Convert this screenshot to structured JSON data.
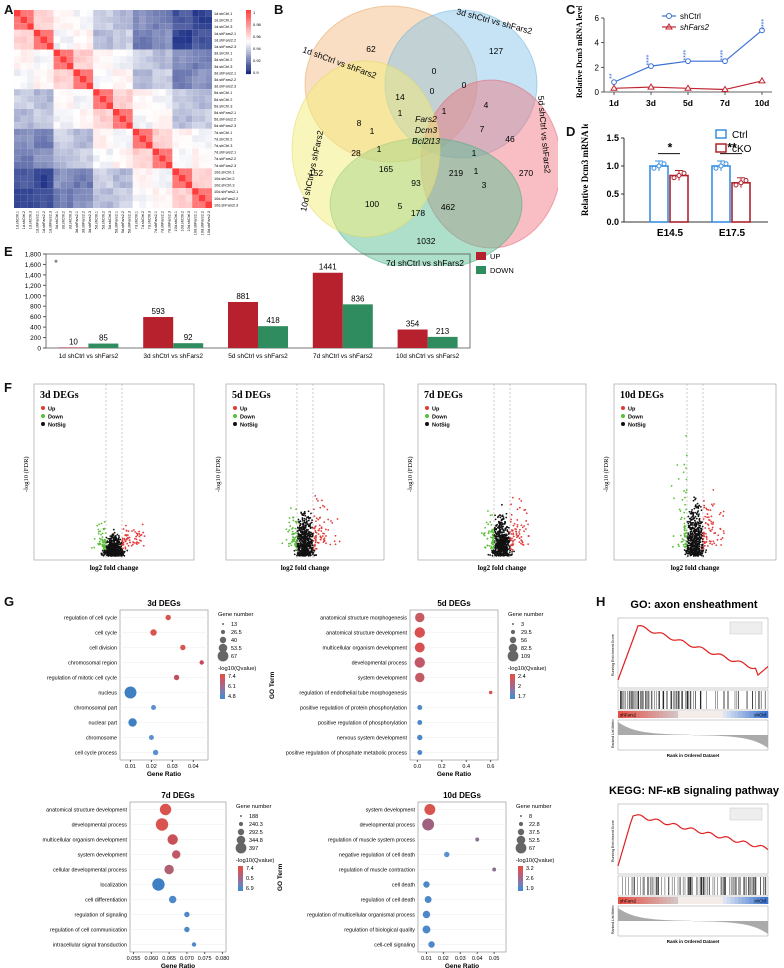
{
  "panel_labels": {
    "A": "A",
    "B": "B",
    "C": "C",
    "D": "D",
    "E": "E",
    "F": "F",
    "G": "G",
    "H": "H"
  },
  "heatmap": {
    "rows": [
      "1d.shCtrl.1",
      "1d.shCtrl.2",
      "1d.shCtrl.3",
      "1d.shFars2.1",
      "1d.shFars2.2",
      "1d.shFars2.3",
      "3d.shCtrl.1",
      "3d.shCtrl.2",
      "3d.shCtrl.3",
      "3d.shFars2.1",
      "3d.shFars2.2",
      "3d.shFars2.3",
      "5d.shCtrl.1",
      "5d.shCtrl.2",
      "5d.shCtrl.3",
      "5d.shFars2.1",
      "5d.shFars2.2",
      "5d.shFars2.3",
      "7d.shCtrl.1",
      "7d.shCtrl.2",
      "7d.shCtrl.3",
      "7d.shFars2.1",
      "7d.shFars2.2",
      "7d.shFars2.3",
      "10d.shCtrl.1",
      "10d.shCtrl.2",
      "10d.shCtrl.3",
      "10d.shFars2.1",
      "10d.shFars2.2",
      "10d.shFars2.3"
    ],
    "scale": [
      "1",
      "0.98",
      "0.96",
      "0.94",
      "0.92",
      "0.9"
    ]
  },
  "venn": {
    "sets": [
      "1d shCtrl vs shFars2",
      "3d shCtrl vs shFars2",
      "5d shCtrl vs shFars2",
      "7d shCtrl vs shFars2",
      "10d shCtrl vs shFars2"
    ],
    "core_genes": [
      "Fars2",
      "Dcm3",
      "Bcl2l13"
    ],
    "counts": [
      "62",
      "127",
      "270",
      "1032",
      "152",
      "14",
      "0",
      "1",
      "0",
      "4",
      "8",
      "7",
      "46",
      "1",
      "1",
      "28",
      "1",
      "165",
      "93",
      "219",
      "1",
      "3",
      "100",
      "5",
      "178",
      "462",
      "0",
      "1"
    ]
  },
  "panel_c": {
    "ylabel": "Relative Dcm3 mRNA levels",
    "legend": [
      "shCtrl",
      "shFars2"
    ],
    "x": [
      "1d",
      "3d",
      "5d",
      "7d",
      "10d"
    ],
    "yticks": [
      "0",
      "2",
      "4",
      "6"
    ],
    "sig": [
      "**",
      "****",
      "****",
      "****",
      "****"
    ]
  },
  "panel_d": {
    "ylabel": "Relative Dcm3 mRNA levels",
    "legend": [
      "Ctrl",
      "cKO"
    ],
    "x": [
      "E14.5",
      "E17.5"
    ],
    "yticks": [
      "0.0",
      "0.5",
      "1.0",
      "1.5"
    ],
    "sig": [
      "*",
      "**"
    ]
  },
  "panel_e": {
    "legend": [
      "UP",
      "DOWN"
    ],
    "yticks": [
      "0",
      "200",
      "400",
      "600",
      "800",
      "1,000",
      "1,200",
      "1,400",
      "1,600",
      "1,800"
    ]
  },
  "volcano": {
    "titles": [
      "3d DEGs",
      "5d DEGs",
      "7d DEGs",
      "10d DEGs"
    ],
    "legend": [
      "Up",
      "Down",
      "NotSig"
    ],
    "xlabel": "log2 fold change",
    "ylabel": "-log10 (FDR)"
  },
  "go": {
    "gene_number_title": "Gene number",
    "qvalue_title": "-log10(Qvalue)",
    "xlabel": "Gene Ratio",
    "ylabel": "GO Term",
    "panels": [
      {
        "title": "3d DEGs",
        "terms": [
          "regulation of cell cycle",
          "cell cycle",
          "cell division",
          "chromosomal region",
          "regulation of mitotic cell cycle",
          "nucleus",
          "chromosomal part",
          "nuclear part",
          "chromosome",
          "cell cycle process"
        ],
        "xticks": [
          "0.01",
          "0.02",
          "0.03",
          "0.04"
        ],
        "sizes": [
          "13",
          "26.5",
          "40",
          "53.5",
          "67"
        ],
        "colors": [
          "7.4",
          "6.1",
          "4.8"
        ]
      },
      {
        "title": "5d DEGs",
        "terms": [
          "anatomical structure morphogenesis",
          "anatomical structure development",
          "multicellular organism development",
          "developmental process",
          "system development",
          "regulation of endothelial tube morphogenesis",
          "positive regulation of protein phosphorylation",
          "positive regulation of phosphorylation",
          "nervous system development",
          "positive regulation of phosphate metabolic process"
        ],
        "xticks": [
          "0.0",
          "0.2",
          "0.4",
          "0.6"
        ],
        "sizes": [
          "3",
          "29.5",
          "56",
          "82.5",
          "109"
        ],
        "colors": [
          "2.4",
          "2",
          "1.7"
        ]
      },
      {
        "title": "7d DEGs",
        "terms": [
          "anatomical structure development",
          "developmental process",
          "multicellular organism development",
          "system development",
          "cellular developmental process",
          "localization",
          "cell differentiation",
          "regulation of signaling",
          "regulation of cell communication",
          "intracellular signal transduction"
        ],
        "xticks": [
          "0.055",
          "0.060",
          "0.065",
          "0.070",
          "0.075",
          "0.080"
        ],
        "sizes": [
          "188",
          "240.3",
          "292.5",
          "344.8",
          "397"
        ],
        "colors": [
          "7.4",
          "0.5",
          "6.9"
        ]
      },
      {
        "title": "10d DEGs",
        "terms": [
          "system development",
          "developmental process",
          "regulation of muscle system process",
          "negative regulation of cell death",
          "regulation of muscle contraction",
          "cell death",
          "regulation of cell death",
          "regulation of multicellular organismal process",
          "regulation of biological quality",
          "cell-cell signaling"
        ],
        "xticks": [
          "0.01",
          "0.02",
          "0.03",
          "0.04",
          "0.05"
        ],
        "sizes": [
          "8",
          "22.8",
          "37.5",
          "52.5",
          "67"
        ],
        "colors": [
          "3.2",
          "2.6",
          "1.9"
        ]
      }
    ]
  },
  "gsea": {
    "titles": [
      "GO: axon ensheathment",
      "KEGG: NF-κB signaling pathway"
    ],
    "left_labels": [
      "shFars2",
      "shFars2"
    ],
    "right_labels": [
      "shCtrl",
      "shCtrl"
    ],
    "xlabel": "Rank in Ordered Dataset",
    "ylabel_top": "Running Enrichment Score",
    "ylabel_bottom": "Ranked List Metric"
  },
  "chart_data": [
    {
      "type": "line",
      "title": "",
      "xlabel": "",
      "ylabel": "Relative Dcm3 mRNA levels",
      "categories": [
        "1d",
        "3d",
        "5d",
        "7d",
        "10d"
      ],
      "series": [
        {
          "name": "shCtrl",
          "values": [
            0.8,
            2.1,
            2.5,
            2.5,
            5.0
          ]
        },
        {
          "name": "shFars2",
          "values": [
            0.3,
            0.4,
            0.3,
            0.2,
            0.9
          ]
        }
      ],
      "ylim": [
        0,
        6
      ],
      "legend": "top-right"
    },
    {
      "type": "bar",
      "title": "",
      "xlabel": "",
      "ylabel": "Relative Dcm3 mRNA levels",
      "categories": [
        "E14.5",
        "E17.5"
      ],
      "series": [
        {
          "name": "Ctrl",
          "values": [
            1.0,
            1.0
          ]
        },
        {
          "name": "cKO",
          "values": [
            0.83,
            0.7
          ]
        }
      ],
      "ylim": [
        0,
        1.5
      ],
      "legend": "top-right"
    },
    {
      "type": "bar",
      "title": "",
      "xlabel": "",
      "ylabel": "",
      "categories": [
        "1d shCtrl vs shFars2",
        "3d shCtrl vs shFars2",
        "5d shCtrl vs shFars2",
        "7d shCtrl vs shFars2",
        "10d shCtrl vs shFars2"
      ],
      "series": [
        {
          "name": "UP",
          "values": [
            10,
            593,
            881,
            1441,
            354
          ]
        },
        {
          "name": "DOWN",
          "values": [
            85,
            92,
            418,
            836,
            213
          ]
        }
      ],
      "ylim": [
        0,
        1800
      ],
      "legend": "top-right",
      "colors": {
        "UP": "#b7202d",
        "DOWN": "#2e8c5e"
      }
    }
  ]
}
